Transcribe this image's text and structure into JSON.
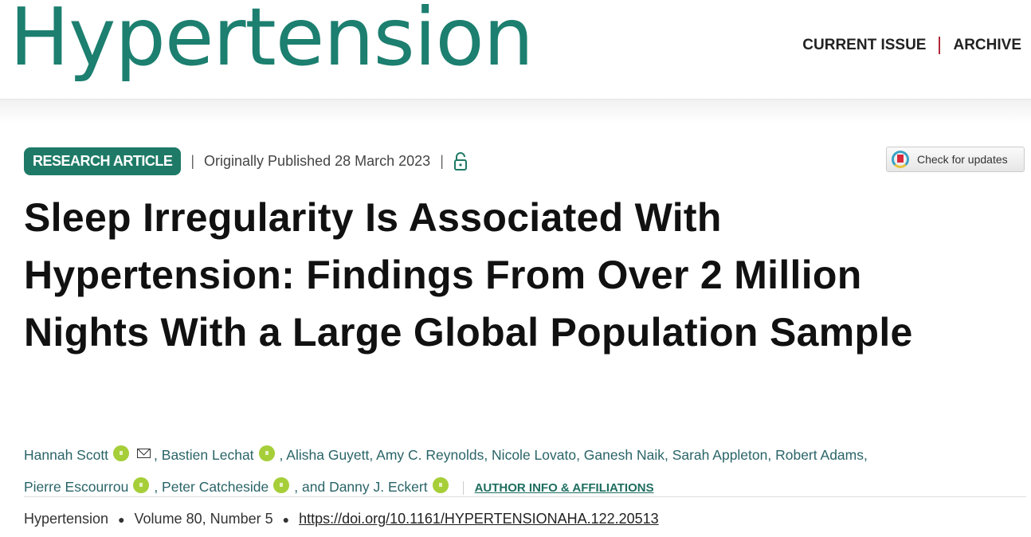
{
  "header": {
    "logo": "Hypertension",
    "nav": [
      "CURRENT ISSUE",
      "ARCHIVE"
    ]
  },
  "meta": {
    "badge": "RESEARCH ARTICLE",
    "published": "Originally Published 28 March 2023",
    "access_icon": "open-lock-icon",
    "updates": "Check for updates"
  },
  "title": "Sleep Irregularity Is Associated With Hypertension: Findings From Over 2 Million Nights With a Large Global Population Sample",
  "authors": {
    "a1": "Hannah Scott",
    "a2": ", Bastien Lechat",
    "a3": ", Alisha Guyett, Amy C. Reynolds, Nicole Lovato, Ganesh Naik, Sarah Appleton, Robert Adams,",
    "a4": "Pierre Escourrou",
    "a5": ", Peter Catcheside",
    "a6": ", and Danny J. Eckert",
    "affiliations": "AUTHOR INFO & AFFILIATIONS"
  },
  "footer": {
    "journal": "Hypertension",
    "volume": "Volume 80, Number 5",
    "doi": "https://doi.org/10.1161/HYPERTENSIONAHA.122.20513"
  },
  "colors": {
    "brand": "#1c7f6f",
    "orcid": "#a6ce39",
    "nav_separator": "#b0283a"
  }
}
